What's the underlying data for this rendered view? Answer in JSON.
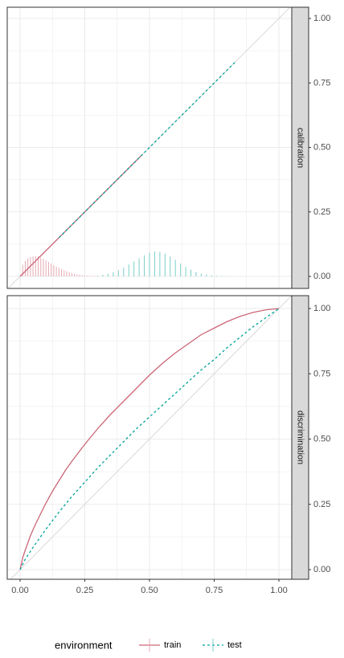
{
  "chart_data": {
    "type": "line",
    "facet_layout": "vertical",
    "grid": true,
    "legend": {
      "position": "bottom",
      "title": "environment",
      "entries": [
        {
          "label": "train",
          "color": "#CC6677",
          "linetype": "solid"
        },
        {
          "label": "test",
          "color": "#00A39A",
          "linetype": "dashed"
        }
      ]
    },
    "panels": [
      {
        "strip": "calibration",
        "xlim": [
          0,
          1
        ],
        "ylim": [
          0,
          1
        ],
        "x_ticks": [
          "0.00",
          "0.25",
          "0.50",
          "0.75",
          "1.00"
        ],
        "y_ticks": [
          "0.00",
          "0.25",
          "0.50",
          "0.75",
          "1.00"
        ],
        "reference_line": {
          "from": [
            0,
            0
          ],
          "to": [
            1,
            1
          ]
        },
        "series": [
          {
            "name": "train",
            "x": [
              0.0,
              0.47
            ],
            "y": [
              0.0,
              0.47
            ]
          },
          {
            "name": "test",
            "x": [
              0.15,
              0.83
            ],
            "y": [
              0.15,
              0.83
            ]
          }
        ],
        "histograms": [
          {
            "name": "train",
            "x": [
              0.01,
              0.02,
              0.03,
              0.04,
              0.05,
              0.06,
              0.07,
              0.08,
              0.09,
              0.1,
              0.11,
              0.12,
              0.13,
              0.14,
              0.15,
              0.16,
              0.17,
              0.18,
              0.19,
              0.2,
              0.21,
              0.22,
              0.23,
              0.24,
              0.25,
              0.26,
              0.27,
              0.28,
              0.29,
              0.3,
              0.32,
              0.34,
              0.36
            ],
            "height": [
              0.045,
              0.06,
              0.07,
              0.075,
              0.077,
              0.078,
              0.077,
              0.073,
              0.068,
              0.062,
              0.056,
              0.05,
              0.044,
              0.038,
              0.033,
              0.028,
              0.024,
              0.02,
              0.016,
              0.013,
              0.01,
              0.008,
              0.006,
              0.005,
              0.004,
              0.003,
              0.0025,
              0.002,
              0.0015,
              0.001,
              0.001,
              0.001,
              0.001
            ]
          },
          {
            "name": "test",
            "x": [
              0.3,
              0.32,
              0.34,
              0.36,
              0.38,
              0.4,
              0.42,
              0.44,
              0.46,
              0.48,
              0.5,
              0.52,
              0.54,
              0.56,
              0.58,
              0.6,
              0.62,
              0.64,
              0.66,
              0.68,
              0.7,
              0.72,
              0.74,
              0.76,
              0.78,
              0.8
            ],
            "height": [
              0.003,
              0.006,
              0.01,
              0.016,
              0.024,
              0.034,
              0.046,
              0.058,
              0.07,
              0.082,
              0.092,
              0.097,
              0.095,
              0.088,
              0.077,
              0.064,
              0.05,
              0.037,
              0.026,
              0.017,
              0.011,
              0.007,
              0.004,
              0.002,
              0.001,
              0.001
            ]
          }
        ]
      },
      {
        "strip": "discrimination",
        "xlim": [
          0,
          1
        ],
        "ylim": [
          0,
          1
        ],
        "x_ticks": [
          "0.00",
          "0.25",
          "0.50",
          "0.75",
          "1.00"
        ],
        "y_ticks": [
          "0.00",
          "0.25",
          "0.50",
          "0.75",
          "1.00"
        ],
        "reference_line": {
          "from": [
            0,
            0
          ],
          "to": [
            1,
            1
          ]
        },
        "series": [
          {
            "name": "train",
            "x": [
              0.0,
              0.01,
              0.02,
              0.04,
              0.06,
              0.08,
              0.1,
              0.125,
              0.15,
              0.175,
              0.2,
              0.25,
              0.3,
              0.35,
              0.4,
              0.45,
              0.5,
              0.55,
              0.6,
              0.65,
              0.7,
              0.75,
              0.8,
              0.85,
              0.9,
              0.95,
              1.0
            ],
            "y": [
              0.0,
              0.045,
              0.075,
              0.13,
              0.175,
              0.215,
              0.255,
              0.3,
              0.34,
              0.38,
              0.415,
              0.48,
              0.54,
              0.595,
              0.645,
              0.695,
              0.745,
              0.79,
              0.83,
              0.865,
              0.9,
              0.925,
              0.95,
              0.97,
              0.985,
              0.995,
              1.0
            ]
          },
          {
            "name": "test",
            "x": [
              0.0,
              0.02,
              0.05,
              0.1,
              0.15,
              0.2,
              0.25,
              0.3,
              0.35,
              0.4,
              0.45,
              0.5,
              0.55,
              0.6,
              0.65,
              0.7,
              0.75,
              0.8,
              0.85,
              0.9,
              0.95,
              1.0
            ],
            "y": [
              0.0,
              0.04,
              0.085,
              0.155,
              0.22,
              0.28,
              0.335,
              0.39,
              0.44,
              0.49,
              0.54,
              0.585,
              0.63,
              0.675,
              0.72,
              0.765,
              0.805,
              0.85,
              0.89,
              0.93,
              0.965,
              1.0
            ]
          }
        ]
      }
    ]
  }
}
